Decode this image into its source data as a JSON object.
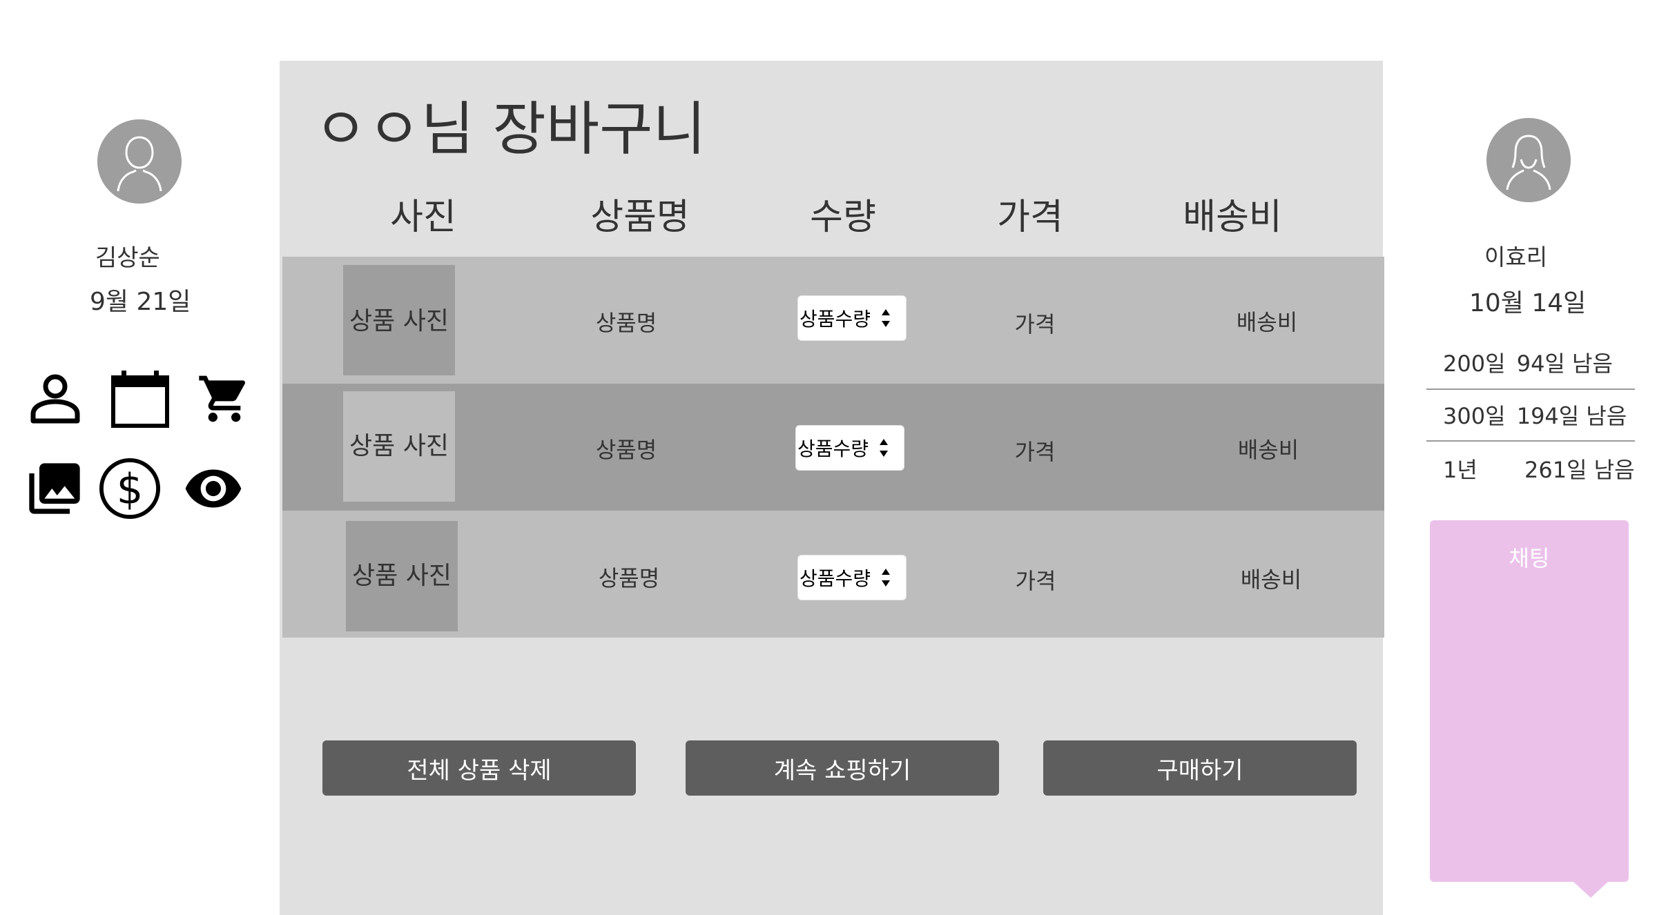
{
  "left_user": {
    "name": "김상순",
    "date": "9월 21일",
    "icons": [
      "person-icon",
      "calendar-icon",
      "cart-icon",
      "photo-library-icon",
      "dollar-icon",
      "eye-icon"
    ]
  },
  "cart": {
    "title": "ㅇㅇ님 장바구니",
    "columns": {
      "photo": "사진",
      "name": "상품명",
      "qty": "수량",
      "price": "가격",
      "shipping": "배송비"
    },
    "rows": [
      {
        "photo": "상품 사진",
        "name": "상품명",
        "qty": "상품수량",
        "price": "가격",
        "shipping": "배송비"
      },
      {
        "photo": "상품 사진",
        "name": "상품명",
        "qty": "상품수량",
        "price": "가격",
        "shipping": "배송비"
      },
      {
        "photo": "상품 사진",
        "name": "상품명",
        "qty": "상품수량",
        "price": "가격",
        "shipping": "배송비"
      }
    ],
    "buttons": {
      "delete_all": "전체 상품 삭제",
      "continue_shopping": "계속 쇼핑하기",
      "purchase": "구매하기"
    }
  },
  "right_user": {
    "name": "이효리",
    "date": "10월 14일",
    "milestones": [
      {
        "label": "200일",
        "remaining": "94일 남음"
      },
      {
        "label": "300일",
        "remaining": "194일 남음"
      },
      {
        "label": "1년",
        "remaining": "261일 남음"
      }
    ],
    "chat_label": "채팅"
  },
  "colors": {
    "panel": "#e0e0e0",
    "row_light": "#bdbdbd",
    "row_dark": "#9e9e9e",
    "button": "#5e5e5e",
    "chat": "#ebc1ea"
  }
}
